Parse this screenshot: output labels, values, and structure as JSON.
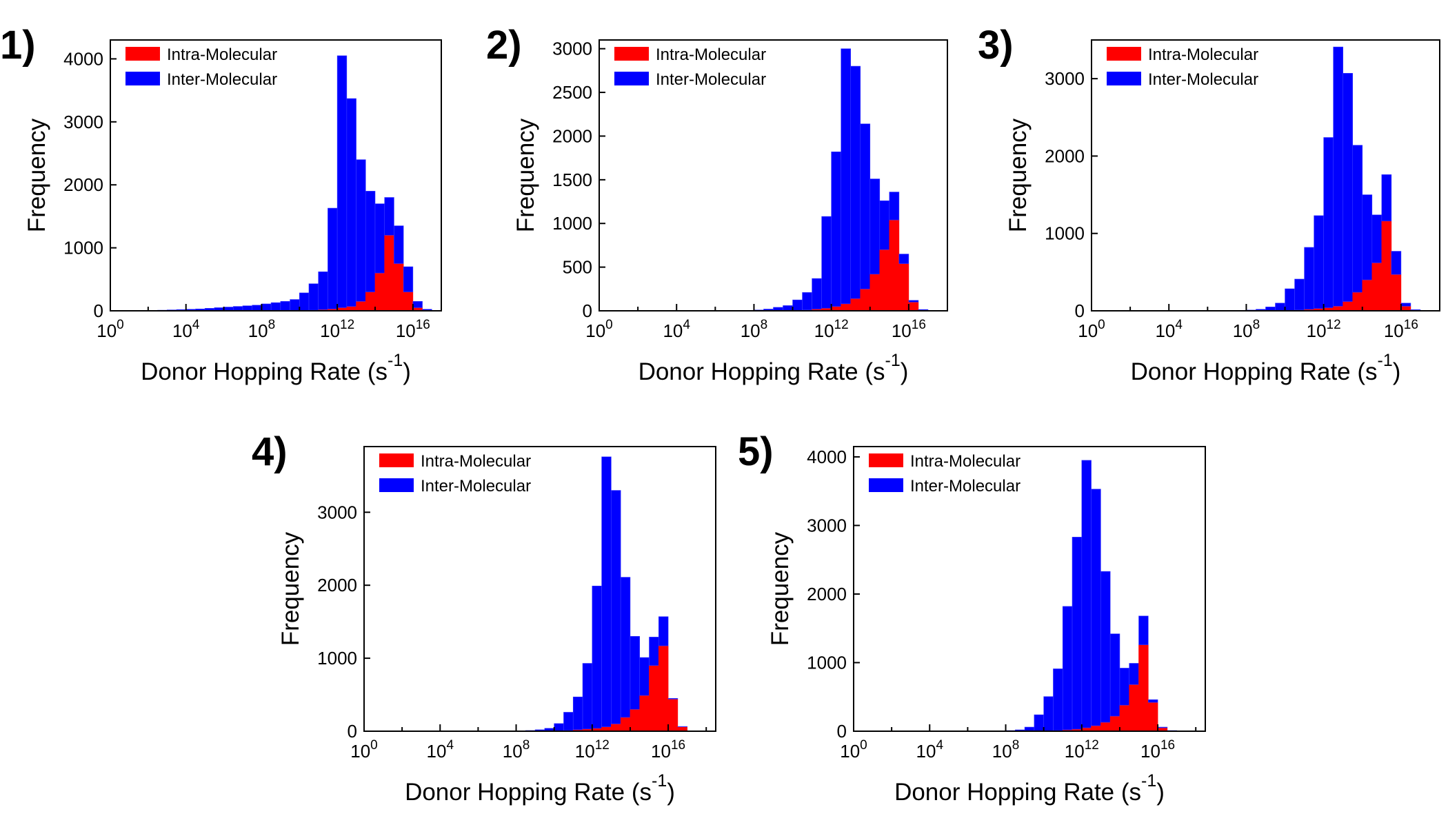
{
  "figure": {
    "panel_labels": [
      "1)",
      "2)",
      "3)",
      "4)",
      "5)"
    ]
  },
  "chart_data": [
    {
      "panel": "1)",
      "type": "bar",
      "stacked": true,
      "xscale": "log",
      "xlabel": "Donor Hopping Rate (s",
      "xlabel_superscript": "-1",
      "xlabel_suffix": ")",
      "ylabel": "Frequency",
      "xlim_log10": [
        0,
        17.5
      ],
      "ylim": [
        0,
        4300
      ],
      "yticks": [
        0,
        1000,
        2000,
        3000,
        4000
      ],
      "xticks_exponent": [
        0,
        4,
        8,
        12,
        16
      ],
      "x_log10_bin_centers": [
        0.25,
        0.75,
        1.25,
        1.75,
        2.25,
        2.75,
        3.25,
        3.75,
        4.25,
        4.75,
        5.25,
        5.75,
        6.25,
        6.75,
        7.25,
        7.75,
        8.25,
        8.75,
        9.25,
        9.75,
        10.25,
        10.75,
        11.25,
        11.75,
        12.25,
        12.75,
        13.25,
        13.75,
        14.25,
        14.75,
        15.25,
        15.75,
        16.25,
        16.75,
        17.25
      ],
      "series": [
        {
          "name": "Intra-Molecular",
          "color": "#ff0000",
          "values": [
            0,
            0,
            0,
            0,
            0,
            0,
            0,
            0,
            0,
            0,
            0,
            0,
            0,
            0,
            0,
            0,
            0,
            0,
            0,
            0,
            5,
            10,
            20,
            30,
            50,
            70,
            150,
            300,
            600,
            1200,
            750,
            300,
            50,
            5,
            0
          ]
        },
        {
          "name": "Inter-Molecular",
          "color": "#0000ff",
          "values": [
            0,
            0,
            0,
            0,
            5,
            10,
            15,
            20,
            25,
            30,
            40,
            50,
            60,
            70,
            80,
            90,
            110,
            130,
            150,
            180,
            280,
            420,
            600,
            1600,
            4000,
            3300,
            2250,
            1600,
            1100,
            600,
            600,
            400,
            100,
            20,
            0
          ]
        }
      ],
      "legend_position": "top-left"
    },
    {
      "panel": "2)",
      "type": "bar",
      "stacked": true,
      "xscale": "log",
      "xlabel": "Donor Hopping Rate (s",
      "xlabel_superscript": "-1",
      "xlabel_suffix": ")",
      "ylabel": "Frequency",
      "xlim_log10": [
        0,
        18
      ],
      "ylim": [
        0,
        3100
      ],
      "yticks": [
        0,
        500,
        1000,
        1500,
        2000,
        2500,
        3000
      ],
      "xticks_exponent": [
        0,
        4,
        8,
        12,
        16
      ],
      "x_log10_bin_centers": [
        0.25,
        0.75,
        1.25,
        1.75,
        2.25,
        2.75,
        3.25,
        3.75,
        4.25,
        4.75,
        5.25,
        5.75,
        6.25,
        6.75,
        7.25,
        7.75,
        8.25,
        8.75,
        9.25,
        9.75,
        10.25,
        10.75,
        11.25,
        11.75,
        12.25,
        12.75,
        13.25,
        13.75,
        14.25,
        14.75,
        15.25,
        15.75,
        16.25,
        16.75,
        17.25
      ],
      "series": [
        {
          "name": "Intra-Molecular",
          "color": "#ff0000",
          "values": [
            0,
            0,
            0,
            0,
            0,
            0,
            0,
            0,
            0,
            0,
            0,
            0,
            0,
            0,
            0,
            0,
            0,
            0,
            0,
            0,
            5,
            10,
            20,
            30,
            50,
            80,
            140,
            250,
            420,
            700,
            1040,
            540,
            100,
            5,
            0
          ]
        },
        {
          "name": "Inter-Molecular",
          "color": "#0000ff",
          "values": [
            0,
            0,
            0,
            0,
            0,
            0,
            0,
            0,
            0,
            0,
            0,
            0,
            0,
            0,
            5,
            5,
            10,
            20,
            40,
            60,
            120,
            200,
            350,
            1050,
            1770,
            2920,
            2660,
            1890,
            1090,
            560,
            320,
            110,
            20,
            10,
            0
          ]
        }
      ],
      "legend_position": "top-left"
    },
    {
      "panel": "3)",
      "type": "bar",
      "stacked": true,
      "xscale": "log",
      "xlabel": "Donor Hopping Rate (s",
      "xlabel_superscript": "-1",
      "xlabel_suffix": ")",
      "ylabel": "Frequency",
      "xlim_log10": [
        0,
        18
      ],
      "ylim": [
        0,
        3500
      ],
      "yticks": [
        0,
        1000,
        2000,
        3000
      ],
      "xticks_exponent": [
        0,
        4,
        8,
        12,
        16
      ],
      "x_log10_bin_centers": [
        0.25,
        0.75,
        1.25,
        1.75,
        2.25,
        2.75,
        3.25,
        3.75,
        4.25,
        4.75,
        5.25,
        5.75,
        6.25,
        6.75,
        7.25,
        7.75,
        8.25,
        8.75,
        9.25,
        9.75,
        10.25,
        10.75,
        11.25,
        11.75,
        12.25,
        12.75,
        13.25,
        13.75,
        14.25,
        14.75,
        15.25,
        15.75,
        16.25,
        16.75,
        17.25
      ],
      "series": [
        {
          "name": "Intra-Molecular",
          "color": "#ff0000",
          "values": [
            0,
            0,
            0,
            0,
            0,
            0,
            0,
            0,
            0,
            0,
            0,
            0,
            0,
            0,
            0,
            0,
            0,
            0,
            0,
            0,
            5,
            10,
            20,
            30,
            40,
            60,
            120,
            240,
            400,
            620,
            1160,
            470,
            60,
            5,
            0
          ]
        },
        {
          "name": "Inter-Molecular",
          "color": "#0000ff",
          "values": [
            0,
            0,
            0,
            0,
            0,
            0,
            0,
            0,
            0,
            0,
            0,
            0,
            0,
            0,
            0,
            5,
            10,
            20,
            50,
            100,
            280,
            400,
            800,
            1200,
            2200,
            3350,
            2950,
            1900,
            1100,
            620,
            600,
            300,
            40,
            10,
            0
          ]
        }
      ],
      "legend_position": "top-left"
    },
    {
      "panel": "4)",
      "type": "bar",
      "stacked": true,
      "xscale": "log",
      "xlabel": "Donor Hopping Rate (s",
      "xlabel_superscript": "-1",
      "xlabel_suffix": ")",
      "ylabel": "Frequency",
      "xlim_log10": [
        0,
        18.5
      ],
      "ylim": [
        0,
        3900
      ],
      "yticks": [
        0,
        1000,
        2000,
        3000
      ],
      "xticks_exponent": [
        0,
        4,
        8,
        12,
        16
      ],
      "x_log10_bin_centers": [
        0.25,
        0.75,
        1.25,
        1.75,
        2.25,
        2.75,
        3.25,
        3.75,
        4.25,
        4.75,
        5.25,
        5.75,
        6.25,
        6.75,
        7.25,
        7.75,
        8.25,
        8.75,
        9.25,
        9.75,
        10.25,
        10.75,
        11.25,
        11.75,
        12.25,
        12.75,
        13.25,
        13.75,
        14.25,
        14.75,
        15.25,
        15.75,
        16.25,
        16.75,
        17.25
      ],
      "series": [
        {
          "name": "Intra-Molecular",
          "color": "#ff0000",
          "values": [
            0,
            0,
            0,
            0,
            0,
            0,
            0,
            0,
            0,
            0,
            0,
            0,
            0,
            0,
            0,
            0,
            0,
            0,
            0,
            0,
            5,
            10,
            20,
            30,
            40,
            60,
            100,
            190,
            300,
            490,
            900,
            1170,
            440,
            60,
            0
          ]
        },
        {
          "name": "Inter-Molecular",
          "color": "#0000ff",
          "values": [
            0,
            0,
            0,
            0,
            0,
            0,
            0,
            0,
            0,
            0,
            0,
            0,
            0,
            0,
            0,
            0,
            5,
            10,
            20,
            40,
            100,
            250,
            450,
            900,
            1950,
            3700,
            3200,
            1920,
            1000,
            520,
            390,
            400,
            10,
            5,
            0
          ]
        }
      ],
      "legend_position": "top-left"
    },
    {
      "panel": "5)",
      "type": "bar",
      "stacked": true,
      "xscale": "log",
      "xlabel": "Donor Hopping Rate (s",
      "xlabel_superscript": "-1",
      "xlabel_suffix": ")",
      "ylabel": "Frequency",
      "xlim_log10": [
        0,
        18.5
      ],
      "ylim": [
        0,
        4150
      ],
      "yticks": [
        0,
        1000,
        2000,
        3000,
        4000
      ],
      "xticks_exponent": [
        0,
        4,
        8,
        12,
        16
      ],
      "x_log10_bin_centers": [
        0.25,
        0.75,
        1.25,
        1.75,
        2.25,
        2.75,
        3.25,
        3.75,
        4.25,
        4.75,
        5.25,
        5.75,
        6.25,
        6.75,
        7.25,
        7.75,
        8.25,
        8.75,
        9.25,
        9.75,
        10.25,
        10.75,
        11.25,
        11.75,
        12.25,
        12.75,
        13.25,
        13.75,
        14.25,
        14.75,
        15.25,
        15.75,
        16.25,
        16.75,
        17.25
      ],
      "series": [
        {
          "name": "Intra-Molecular",
          "color": "#ff0000",
          "values": [
            0,
            0,
            0,
            0,
            0,
            0,
            0,
            0,
            0,
            0,
            0,
            0,
            0,
            0,
            0,
            0,
            0,
            0,
            0,
            0,
            5,
            10,
            20,
            30,
            50,
            80,
            130,
            220,
            380,
            680,
            1260,
            420,
            50,
            5,
            0
          ]
        },
        {
          "name": "Inter-Molecular",
          "color": "#0000ff",
          "values": [
            0,
            0,
            0,
            0,
            0,
            0,
            0,
            0,
            0,
            0,
            0,
            0,
            0,
            0,
            0,
            5,
            10,
            20,
            60,
            240,
            500,
            900,
            1800,
            2800,
            3900,
            3450,
            2200,
            1200,
            540,
            310,
            420,
            40,
            10,
            5,
            0
          ]
        }
      ],
      "legend_position": "top-left"
    }
  ]
}
